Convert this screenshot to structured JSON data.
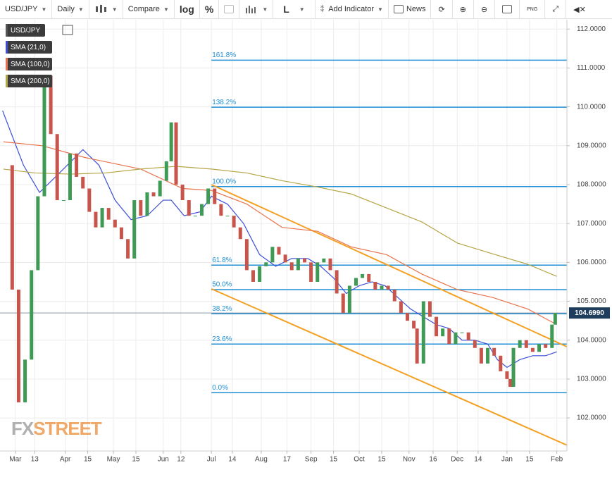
{
  "toolbar": {
    "symbol": "USD/JPY",
    "interval": "Daily",
    "compare": "Compare",
    "log": "log",
    "percent": "%",
    "style": "L",
    "indicator": "Add Indicator",
    "news": "News"
  },
  "chart_data": {
    "type": "candlestick",
    "x": [
      -6,
      -2,
      2,
      6,
      10,
      14,
      18,
      22,
      26,
      30,
      34,
      38,
      42,
      46,
      50,
      54,
      58,
      62,
      66,
      70,
      74,
      78,
      82,
      86,
      90,
      94,
      97,
      100,
      104,
      108,
      112,
      116,
      120,
      124,
      128,
      132,
      136,
      140,
      144,
      148,
      152,
      156,
      160,
      164,
      168,
      172,
      176,
      180,
      184,
      188,
      192,
      196,
      200,
      204,
      208,
      212,
      216,
      220,
      224,
      228,
      232,
      236,
      240,
      244,
      248,
      250,
      254,
      258,
      262,
      266,
      270,
      274,
      278,
      282,
      286,
      290,
      294,
      298,
      302,
      306,
      308,
      310,
      314,
      318,
      322,
      326,
      330,
      334,
      336
    ],
    "series": [
      {
        "name": "USD/JPY",
        "up_color": "#3f9a55",
        "down_color": "#c8554b",
        "values": [
          108.5,
          105.3,
          102.4,
          103.5,
          105.8,
          107.7,
          110.8,
          109.3,
          107.6,
          107.6,
          108.8,
          108.2,
          107.9,
          107.3,
          106.9,
          107.4,
          107.1,
          106.9,
          106.6,
          106.1,
          107.6,
          107.2,
          107.8,
          107.7,
          108.1,
          108.6,
          109.6,
          108.0,
          107.6,
          107.2,
          107.2,
          107.5,
          107.9,
          107.5,
          107.2,
          107.2,
          106.9,
          106.6,
          105.8,
          105.5,
          105.9,
          106.0,
          106.4,
          106.2,
          106.0,
          105.8,
          106.1,
          106.0,
          105.5,
          106.0,
          106.1,
          105.8,
          105.2,
          104.7,
          105.4,
          105.6,
          105.7,
          105.5,
          105.3,
          105.4,
          105.3,
          105.0,
          104.7,
          104.5,
          104.3,
          103.4,
          105.0,
          104.6,
          104.1,
          104.3,
          103.9,
          104.2,
          104.2,
          104.0,
          103.8,
          103.4,
          103.8,
          103.6,
          103.2,
          103.0,
          102.8,
          103.8,
          104.0,
          103.8,
          103.7,
          103.9,
          103.8,
          104.4,
          104.7
        ]
      }
    ],
    "overlays": [
      {
        "name": "SMA (21,0)",
        "color": "#3d4fd6",
        "x": [
          -8,
          5,
          15,
          25,
          42,
          52,
          62,
          72,
          82,
          92,
          97,
          105,
          115,
          122,
          132,
          142,
          152,
          162,
          172,
          182,
          190,
          198,
          206,
          214,
          222,
          230,
          238,
          246,
          254,
          262,
          270,
          278,
          286,
          294,
          300,
          306,
          314,
          322,
          330,
          337
        ],
        "values": [
          109.9,
          108.5,
          107.8,
          108.2,
          108.9,
          108.5,
          107.6,
          107.1,
          107.2,
          107.6,
          107.6,
          107.2,
          107.3,
          107.7,
          107.5,
          107.0,
          106.2,
          105.9,
          106.1,
          106.1,
          105.9,
          105.6,
          105.2,
          105.4,
          105.5,
          105.4,
          105.1,
          104.8,
          104.6,
          104.4,
          104.3,
          104.0,
          104.0,
          103.9,
          103.5,
          103.3,
          103.5,
          103.6,
          103.6,
          103.7
        ]
      },
      {
        "name": "SMA (100,0)",
        "color": "#e8734d",
        "x": [
          -7.5,
          16.7,
          43,
          78,
          104,
          122,
          144,
          166,
          188,
          209,
          231,
          253,
          275,
          297,
          319,
          337
        ],
        "values": [
          109.1,
          109.0,
          108.7,
          108.4,
          107.9,
          107.85,
          107.5,
          106.9,
          106.8,
          106.4,
          106.2,
          105.7,
          105.3,
          105.1,
          104.8,
          104.4
        ]
      },
      {
        "name": "SMA (200,0)",
        "color": "#b5a646",
        "x": [
          -7.5,
          12,
          34,
          56,
          78,
          100,
          122,
          144,
          166,
          188,
          209,
          231,
          253,
          275,
          297,
          319,
          337
        ],
        "values": [
          108.4,
          108.3,
          108.27,
          108.3,
          108.4,
          108.47,
          108.4,
          108.3,
          108.1,
          107.94,
          107.76,
          107.4,
          107.04,
          106.5,
          106.22,
          105.95,
          105.64
        ]
      }
    ],
    "fib_start": 122,
    "fib_color": "#1f8fd6",
    "fib_levels": [
      {
        "label": "161.8%",
        "value": 111.2
      },
      {
        "label": "138.2%",
        "value": 109.99
      },
      {
        "label": "100.0%",
        "value": 107.95
      },
      {
        "label": "61.8%",
        "value": 105.93
      },
      {
        "label": "50.0%",
        "value": 105.3
      },
      {
        "label": "38.2%",
        "value": 104.68
      },
      {
        "label": "23.6%",
        "value": 103.9
      },
      {
        "label": "0.0%",
        "value": 102.65
      }
    ],
    "trend_color": "#f4a023",
    "trend_lines": [
      {
        "x": [
          122,
          343.3
        ],
        "values": [
          108.0,
          103.83
        ]
      },
      {
        "x": [
          122,
          343.3
        ],
        "values": [
          105.32,
          101.3
        ]
      }
    ],
    "last_price": {
      "value": 104.699,
      "label": "104.6990"
    },
    "watermark": [
      "FX",
      "STREET"
    ],
    "xlim": [
      -9.6,
      343.3
    ],
    "ylim": [
      101.15,
      112.24
    ],
    "xticks": [
      {
        "value": 0,
        "label": "Mar"
      },
      {
        "value": 12,
        "label": "13"
      },
      {
        "value": 31,
        "label": "Apr"
      },
      {
        "value": 45,
        "label": "15"
      },
      {
        "value": 61,
        "label": "May"
      },
      {
        "value": 75,
        "label": "15"
      },
      {
        "value": 92,
        "label": "Jun"
      },
      {
        "value": 103,
        "label": "12"
      },
      {
        "value": 122,
        "label": "Jul"
      },
      {
        "value": 135,
        "label": "14"
      },
      {
        "value": 153,
        "label": "Aug"
      },
      {
        "value": 169,
        "label": "17"
      },
      {
        "value": 184,
        "label": "Sep"
      },
      {
        "value": 198,
        "label": "15"
      },
      {
        "value": 214,
        "label": "Oct"
      },
      {
        "value": 228,
        "label": "15"
      },
      {
        "value": 245,
        "label": "Nov"
      },
      {
        "value": 260,
        "label": "16"
      },
      {
        "value": 275,
        "label": "Dec"
      },
      {
        "value": 288,
        "label": "14"
      },
      {
        "value": 306,
        "label": "Jan"
      },
      {
        "value": 320,
        "label": "15"
      },
      {
        "value": 337,
        "label": "Feb"
      }
    ],
    "yticks": [
      {
        "value": 102,
        "label": "102.0000"
      },
      {
        "value": 103,
        "label": "103.0000"
      },
      {
        "value": 104,
        "label": "104.0000"
      },
      {
        "value": 105,
        "label": "105.0000"
      },
      {
        "value": 106,
        "label": "106.0000"
      },
      {
        "value": 107,
        "label": "107.0000"
      },
      {
        "value": 108,
        "label": "108.0000"
      },
      {
        "value": 109,
        "label": "109.0000"
      },
      {
        "value": 110,
        "label": "110.0000"
      },
      {
        "value": 111,
        "label": "111.0000"
      },
      {
        "value": 112,
        "label": "112.0000"
      }
    ]
  }
}
